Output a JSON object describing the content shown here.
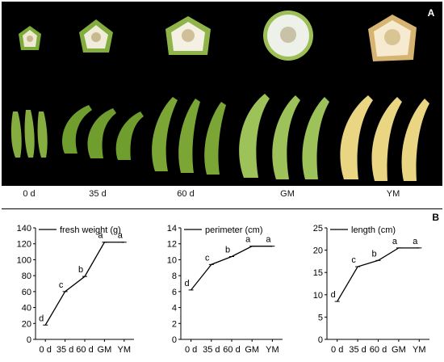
{
  "figure": {
    "panel_a_label": "A",
    "panel_b_label": "B",
    "stages": [
      "0 d",
      "35 d",
      "60 d",
      "GM",
      "YM"
    ]
  },
  "colors": {
    "photo_bg": "#000000",
    "green_peel": "#7cab3a",
    "yellow_peel": "#e8d27a",
    "pulp": "#f3efe2",
    "line": "#000000"
  },
  "chart_data": [
    {
      "type": "line",
      "title": "",
      "legend": "fresh weight (g)",
      "categories": [
        "0 d",
        "35 d",
        "60 d",
        "GM",
        "YM"
      ],
      "values": [
        18,
        60,
        79,
        122,
        122
      ],
      "point_labels": [
        "d",
        "c",
        "b",
        "a",
        "a"
      ],
      "yticks": [
        0,
        20,
        40,
        60,
        80,
        100,
        120,
        140
      ],
      "ylim": [
        0,
        140
      ]
    },
    {
      "type": "line",
      "title": "",
      "legend": "perimeter (cm)",
      "categories": [
        "0 d",
        "35 d",
        "60 d",
        "GM",
        "YM"
      ],
      "values": [
        6.2,
        9.4,
        10.4,
        11.7,
        11.7
      ],
      "point_labels": [
        "d",
        "c",
        "b",
        "a",
        "a"
      ],
      "yticks": [
        0,
        2,
        4,
        6,
        8,
        10,
        12,
        14
      ],
      "ylim": [
        0,
        14
      ]
    },
    {
      "type": "line",
      "title": "",
      "legend": "length (cm)",
      "categories": [
        "0 d",
        "35 d",
        "60 d",
        "GM",
        "YM"
      ],
      "values": [
        8.5,
        16.3,
        17.7,
        20.5,
        20.5
      ],
      "point_labels": [
        "d",
        "c",
        "b",
        "a",
        "a"
      ],
      "yticks": [
        0,
        5,
        10,
        15,
        20,
        25
      ],
      "ylim": [
        0,
        25
      ]
    }
  ]
}
